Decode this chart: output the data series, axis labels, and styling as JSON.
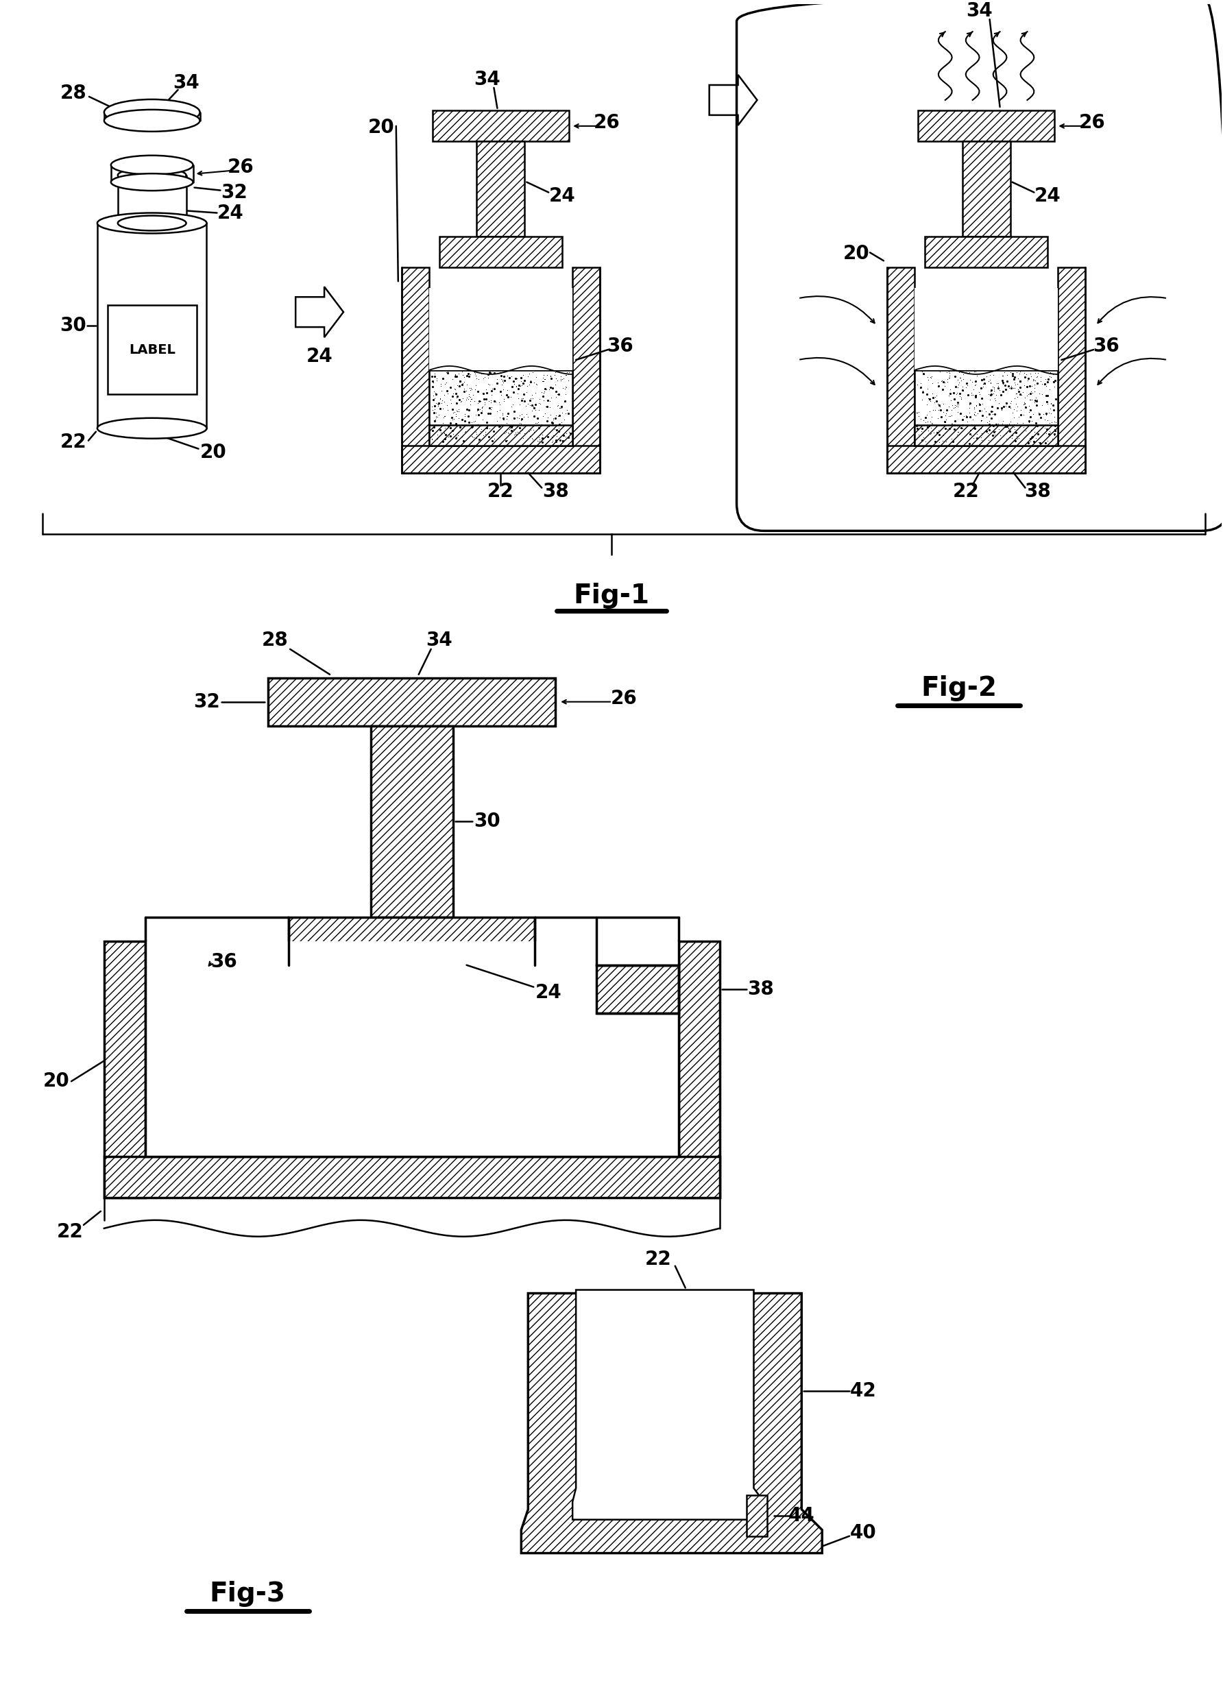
{
  "bg_color": "#ffffff",
  "fig1_label": "Fig-1",
  "fig2_label": "Fig-2",
  "fig3_label": "Fig-3",
  "annotation_font_size": 20,
  "fig_label_font_size": 28
}
